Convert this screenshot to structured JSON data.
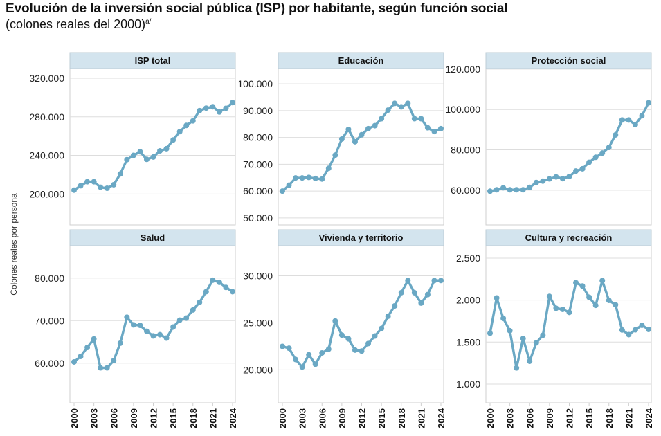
{
  "chart_data": {
    "type": "line",
    "title": "Evolución de la inversión social pública (ISP) por habitante, según función social",
    "subtitle": "(colones reales del 2000)",
    "subtitle_note": "a/",
    "ylabel": "Colones reales por persona",
    "xlabel": "",
    "x": [
      2000,
      2001,
      2002,
      2003,
      2004,
      2005,
      2006,
      2007,
      2008,
      2009,
      2010,
      2011,
      2012,
      2013,
      2014,
      2015,
      2016,
      2017,
      2018,
      2019,
      2020,
      2021,
      2022,
      2023,
      2024
    ],
    "x_ticks": [
      "2000",
      "2003",
      "2006",
      "2009",
      "2012",
      "2015",
      "2018",
      "2021",
      "2024"
    ],
    "grid": true,
    "color": "#6aa8c4",
    "header_color": "#d3e4ee",
    "panels": [
      {
        "name": "ISP total",
        "ylim": [
          168000,
          330000
        ],
        "y_ticks": [
          200000,
          240000,
          280000,
          320000
        ],
        "y_tick_labels": [
          "200.000",
          "240.000",
          "280.000",
          "320.000"
        ],
        "values": [
          204000,
          208600,
          212700,
          212700,
          207000,
          206000,
          209600,
          220800,
          235600,
          240000,
          243800,
          235900,
          238300,
          244700,
          246900,
          256000,
          264600,
          271000,
          275800,
          286400,
          289000,
          290400,
          285000,
          288800,
          294700
        ]
      },
      {
        "name": "Educación",
        "ylim": [
          47400,
          105700
        ],
        "y_ticks": [
          50000,
          60000,
          70000,
          80000,
          90000,
          100000
        ],
        "y_tick_labels": [
          "50.000",
          "60.000",
          "70.000",
          "80.000",
          "90.000",
          "100.000"
        ],
        "values": [
          60000,
          62200,
          64900,
          64900,
          65100,
          64700,
          64500,
          68500,
          73400,
          79400,
          83000,
          78400,
          81000,
          83300,
          84400,
          87000,
          90200,
          92700,
          91400,
          92700,
          87000,
          87000,
          83600,
          82200,
          83300
        ]
      },
      {
        "name": "Protección social",
        "ylim": [
          42800,
          120300
        ],
        "y_ticks": [
          60000,
          80000,
          100000,
          120000
        ],
        "y_tick_labels": [
          "60.000",
          "80.000",
          "100.000",
          "120.000"
        ],
        "values": [
          59500,
          60200,
          61200,
          60200,
          60200,
          60200,
          61400,
          63800,
          64500,
          65600,
          66600,
          65700,
          66800,
          69500,
          70600,
          73800,
          76300,
          78400,
          81200,
          87400,
          94800,
          94800,
          92500,
          96900,
          103300
        ]
      },
      {
        "name": "Salud",
        "ylim": [
          50700,
          87600
        ],
        "y_ticks": [
          60000,
          70000,
          80000
        ],
        "y_tick_labels": [
          "60.000",
          "70.000",
          "80.000"
        ],
        "values": [
          60300,
          61600,
          63700,
          65700,
          58900,
          58900,
          60600,
          64700,
          70800,
          69000,
          68900,
          67500,
          66400,
          66700,
          65900,
          68500,
          70100,
          70600,
          72500,
          74300,
          76800,
          79500,
          79000,
          77800,
          76800
        ]
      },
      {
        "name": "Vivienda y territorio",
        "ylim": [
          16500,
          33200
        ],
        "y_ticks": [
          20000,
          25000,
          30000
        ],
        "y_tick_labels": [
          "20.000",
          "25.000",
          "30.000"
        ],
        "values": [
          22500,
          22300,
          21100,
          20300,
          21600,
          20600,
          21800,
          22200,
          25200,
          23700,
          23300,
          22100,
          22000,
          22800,
          23600,
          24400,
          25700,
          26800,
          28200,
          29500,
          28200,
          27100,
          28000,
          29500,
          29500
        ]
      },
      {
        "name": "Cultura y recreación",
        "ylim": [
          777,
          2648
        ],
        "y_ticks": [
          1000,
          1500,
          2000,
          2500
        ],
        "y_tick_labels": [
          "1.000",
          "1.500",
          "2.000",
          "2.500"
        ],
        "values": [
          1605,
          2026,
          1783,
          1635,
          1192,
          1543,
          1272,
          1491,
          1581,
          2044,
          1903,
          1890,
          1854,
          2207,
          2168,
          2034,
          1938,
          2232,
          1997,
          1945,
          1644,
          1589,
          1646,
          1701,
          1651
        ]
      }
    ]
  }
}
